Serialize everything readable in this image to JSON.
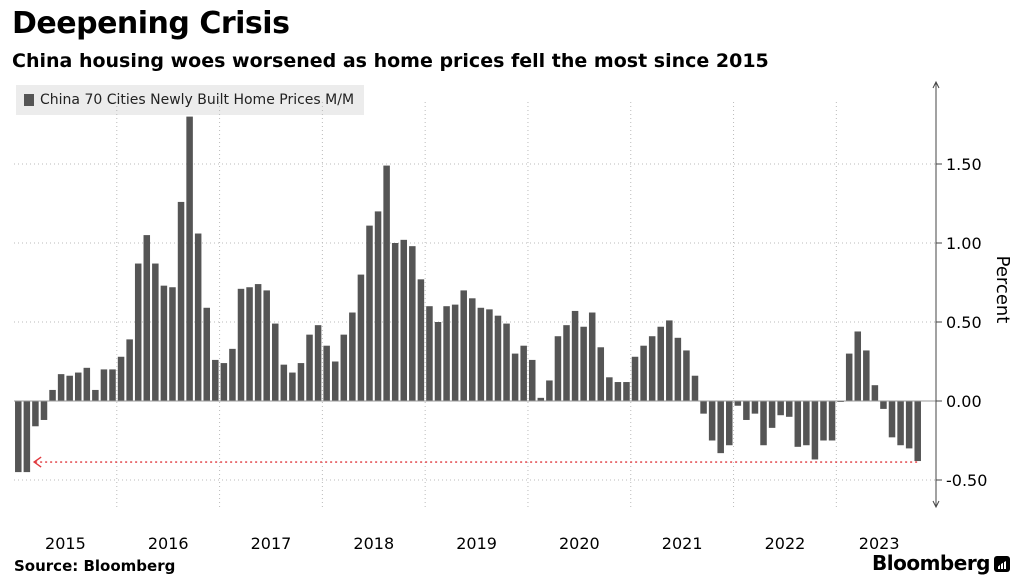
{
  "chart_data": {
    "type": "bar",
    "title": "Deepening Crisis",
    "subtitle": "China housing woes worsened as home prices fell the most since 2015",
    "ylabel": "Percent",
    "ylim": [
      -0.65,
      1.9
    ],
    "yticks": [
      1.5,
      1.0,
      0.5,
      0.0,
      -0.5
    ],
    "ytick_labels": [
      "1.50",
      "1.00",
      "0.50",
      "0.00",
      "-0.50"
    ],
    "x_year_labels": [
      "2015",
      "2016",
      "2017",
      "2018",
      "2019",
      "2020",
      "2021",
      "2022",
      "2023"
    ],
    "grid": true,
    "legend_position": "top-left",
    "annotation": "dotted red arrow from latest value back to 2015 level",
    "colors": {
      "bar": "#555555",
      "annotation": "#e0393e",
      "grid": "#bbbbbb"
    },
    "series": [
      {
        "name": "China 70 Cities Newly Built Home Prices M/M",
        "start": "2015-01",
        "values": [
          -0.45,
          -0.45,
          -0.16,
          -0.12,
          0.07,
          0.17,
          0.16,
          0.18,
          0.21,
          0.07,
          0.2,
          0.2,
          0.28,
          0.39,
          0.87,
          1.05,
          0.87,
          0.73,
          0.72,
          1.26,
          1.8,
          1.06,
          0.59,
          0.26,
          0.24,
          0.33,
          0.71,
          0.72,
          0.74,
          0.7,
          0.49,
          0.23,
          0.18,
          0.24,
          0.42,
          0.48,
          0.35,
          0.25,
          0.42,
          0.56,
          0.8,
          1.11,
          1.2,
          1.49,
          1.0,
          1.02,
          0.98,
          0.77,
          0.6,
          0.5,
          0.6,
          0.61,
          0.7,
          0.65,
          0.59,
          0.58,
          0.54,
          0.49,
          0.3,
          0.35,
          0.26,
          0.02,
          0.13,
          0.41,
          0.48,
          0.57,
          0.47,
          0.56,
          0.34,
          0.15,
          0.12,
          0.12,
          0.28,
          0.35,
          0.41,
          0.47,
          0.51,
          0.4,
          0.32,
          0.16,
          -0.08,
          -0.25,
          -0.33,
          -0.28,
          -0.03,
          -0.12,
          -0.08,
          -0.28,
          -0.17,
          -0.09,
          -0.1,
          -0.29,
          -0.28,
          -0.37,
          -0.25,
          -0.25,
          0.0,
          0.3,
          0.44,
          0.32,
          0.1,
          -0.05,
          -0.23,
          -0.28,
          -0.3,
          -0.38
        ]
      }
    ]
  },
  "source": "Source: Bloomberg",
  "brand": "Bloomberg"
}
